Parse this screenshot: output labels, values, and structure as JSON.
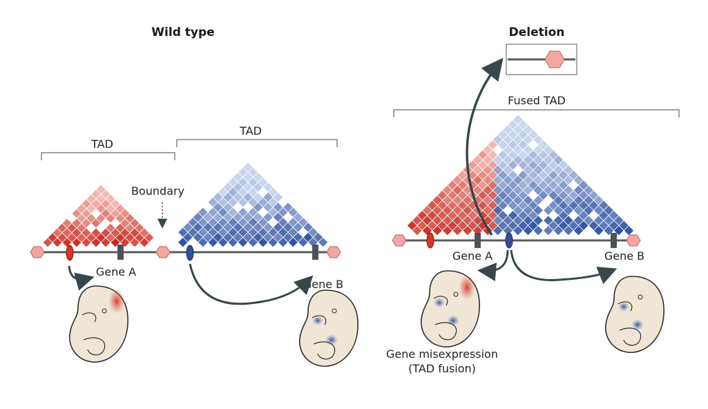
{
  "wild_type": {
    "title": "Wild type",
    "tad_left_label": "TAD",
    "tad_right_label": "TAD",
    "boundary_label": "Boundary",
    "gene_a_label": "Gene A",
    "gene_b_label": "Gene B"
  },
  "deletion": {
    "title": "Deletion",
    "fused_tad_label": "Fused TAD",
    "gene_a_label": "Gene A",
    "gene_b_label": "Gene B",
    "misexpression_line1": "Gene misexpression",
    "misexpression_line2": "(TAD fusion)"
  },
  "colors": {
    "red_dark": "#c8281e",
    "red_light": "#f4b9b2",
    "blue_dark": "#2e4f9c",
    "blue_light": "#c8d6ee",
    "boundary_fill": "#f3a7a0",
    "chromatin_line": "#5a5a5a",
    "arrow": "#37474a",
    "embryo_fill": "#efe6d6",
    "gene_box": "#4a5458"
  }
}
